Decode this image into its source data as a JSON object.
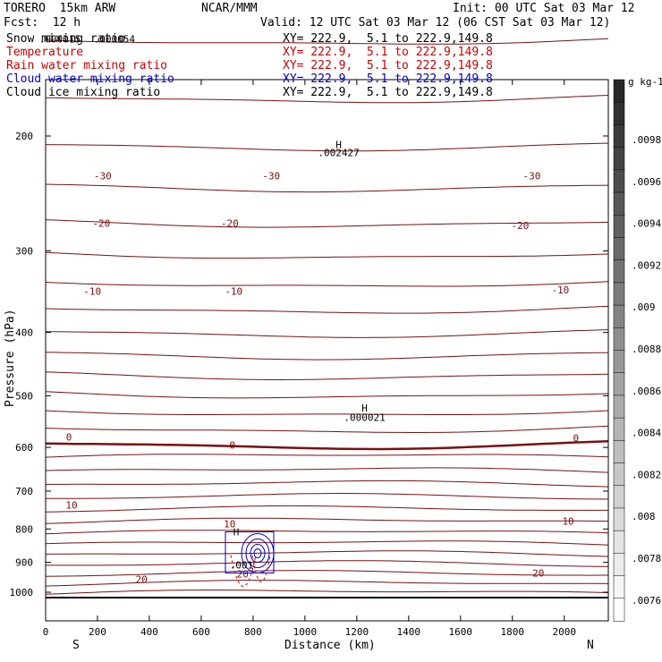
{
  "header": {
    "model": "TORERO  15km ARW",
    "center": "NCAR/MMM",
    "init": "Init: 00 UTC Sat 03 Mar 12",
    "fcst": "Fcst:  12 h",
    "valid": "Valid: 12 UTC Sat 03 Mar 12 (06 CST Sat 03 Mar 12)"
  },
  "fields": [
    {
      "name": "Snow mixing ratio",
      "xy": "XY= 222.9,  5.1 to 222.9,149.8",
      "color": "#000000"
    },
    {
      "name": "Temperature",
      "xy": "XY= 222.9,  5.1 to 222.9,149.8",
      "color": "#cc0000"
    },
    {
      "name": "Rain water mixing ratio",
      "xy": "XY= 222.9,  5.1 to 222.9,149.8",
      "color": "#cc0000"
    },
    {
      "name": "Cloud water mixing ratio",
      "xy": "XY= 222.9,  5.1 to 222.9,149.8",
      "color": "#0000cc"
    },
    {
      "name": "Cloud ice mixing ratio",
      "xy": "XY= 222.9,  5.1 to 222.9,149.8",
      "color": "#000000"
    }
  ],
  "chart_data": {
    "type": "contour",
    "xlabel": "Distance (km)",
    "ylabel": "Pressure (hPa)",
    "x_ticks": [
      0,
      200,
      400,
      600,
      800,
      1000,
      1200,
      1400,
      1600,
      1800,
      2000
    ],
    "y_ticks": [
      200,
      300,
      400,
      500,
      600,
      700,
      800,
      900,
      1000
    ],
    "xlim": [
      0,
      2170
    ],
    "ylim": [
      1050,
      100
    ],
    "y_scale": "log",
    "x_end_labels": {
      "left": "S",
      "right": "N"
    },
    "temperature_contours": {
      "color": "#7a1010",
      "zero_color": "#7a1010",
      "labels": [
        {
          "text": "-30",
          "x": 220,
          "p": 230
        },
        {
          "text": "-30",
          "x": 870,
          "p": 230
        },
        {
          "text": "-30",
          "x": 1875,
          "p": 230
        },
        {
          "text": "-20",
          "x": 215,
          "p": 272
        },
        {
          "text": "-20",
          "x": 710,
          "p": 272
        },
        {
          "text": "-20",
          "x": 1830,
          "p": 274
        },
        {
          "text": "-10",
          "x": 180,
          "p": 346
        },
        {
          "text": "-10",
          "x": 725,
          "p": 346
        },
        {
          "text": "-10",
          "x": 1985,
          "p": 344
        },
        {
          "text": "0",
          "x": 90,
          "p": 578
        },
        {
          "text": "0",
          "x": 720,
          "p": 595
        },
        {
          "text": "0",
          "x": 2045,
          "p": 580
        },
        {
          "text": "10",
          "x": 100,
          "p": 735
        },
        {
          "text": "10",
          "x": 710,
          "p": 785
        },
        {
          "text": "10",
          "x": 2015,
          "p": 778
        },
        {
          "text": "20",
          "x": 370,
          "p": 955
        },
        {
          "text": "20",
          "x": 760,
          "p": 938
        },
        {
          "text": "20",
          "x": 1900,
          "p": 935
        }
      ]
    },
    "annotations": [
      {
        "text": "H",
        "x": 1130,
        "p": 206
      },
      {
        "text": ".002427",
        "x": 1130,
        "p": 212
      },
      {
        "text": "H",
        "x": 1230,
        "p": 522
      },
      {
        "text": ".000021",
        "x": 1230,
        "p": 540
      },
      {
        "text": ".000015",
        "x": 55,
        "p": 142
      },
      {
        "text": ".000054",
        "x": 265,
        "p": 142
      },
      {
        "text": ".001",
        "x": 755,
        "p": 908
      },
      {
        "text": "H",
        "x": 735,
        "p": 808
      }
    ],
    "colorbar": {
      "unit": "g kg-1",
      "ticks": [
        ".0098",
        ".0096",
        ".0094",
        ".0092",
        ".009",
        ".0088",
        ".0086",
        ".0084",
        ".0082",
        ".008",
        ".0078",
        ".0076"
      ]
    }
  }
}
